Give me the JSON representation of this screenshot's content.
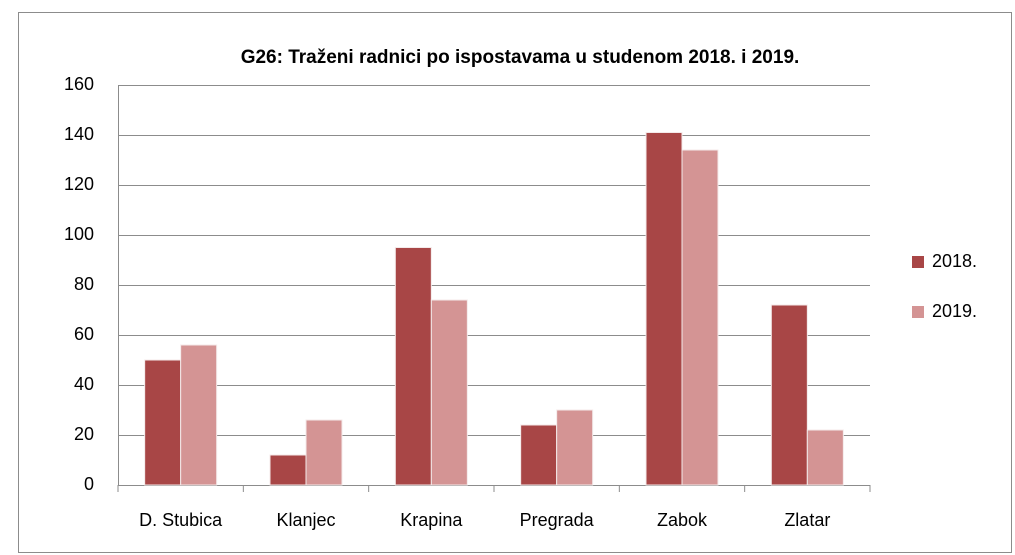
{
  "chart_data": {
    "type": "bar",
    "title": "G26: Traženi radnici po ispostavama u studenom 2018. i 2019.",
    "categories": [
      "D. Stubica",
      "Klanjec",
      "Krapina",
      "Pregrada",
      "Zabok",
      "Zlatar"
    ],
    "series": [
      {
        "name": "2018.",
        "color": "#a84646",
        "values": [
          50,
          12,
          95,
          24,
          141,
          72
        ]
      },
      {
        "name": "2019.",
        "color": "#d49494",
        "values": [
          56,
          26,
          74,
          30,
          134,
          22
        ]
      }
    ],
    "ylim": [
      0,
      160
    ],
    "yticks": [
      0,
      20,
      40,
      60,
      80,
      100,
      120,
      140,
      160
    ],
    "grid": true,
    "legend": "right"
  }
}
